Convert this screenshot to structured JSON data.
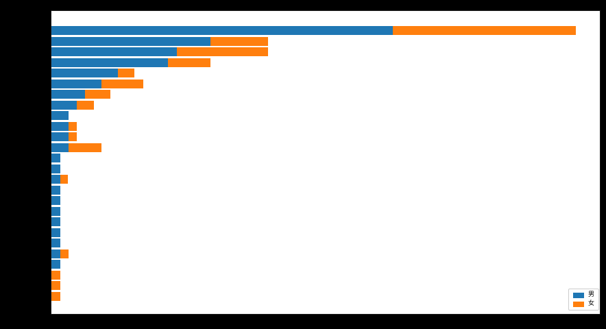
{
  "figure": {
    "background_color": "#000000",
    "plot_background_color": "#ffffff",
    "title": "",
    "title_legible": false,
    "y_tick_labels_legible": false,
    "x_tick_labels_legible": false
  },
  "legend": {
    "position": "lower right",
    "entries": [
      {
        "label": "男",
        "color": "#1f77b4"
      },
      {
        "label": "女",
        "color": "#ff7f0e"
      }
    ]
  },
  "chart_data": {
    "type": "bar",
    "orientation": "horizontal",
    "stacked": true,
    "title": "",
    "xlabel": "",
    "ylabel": "",
    "grid": false,
    "legend_position": "lower right",
    "xlim": [
      0,
      800
    ],
    "value_units": "plot-area pixels (axis tick labels are black-on-black and not legible)",
    "categories": [
      "",
      "",
      "",
      "",
      "",
      "",
      "",
      "",
      "",
      "",
      "",
      "",
      "",
      "",
      "",
      "",
      "",
      "",
      "",
      "",
      "",
      "",
      "",
      "",
      "",
      ""
    ],
    "series": [
      {
        "name": "男",
        "color": "#1f77b4",
        "values": [
          498,
          232,
          183,
          170,
          97,
          73,
          49,
          37,
          25,
          25,
          25,
          25,
          13,
          13,
          13,
          13,
          13,
          13,
          13,
          13,
          13,
          13,
          13,
          0,
          0,
          0
        ]
      },
      {
        "name": "女",
        "color": "#ff7f0e",
        "values": [
          267,
          84,
          133,
          62,
          24,
          61,
          37,
          25,
          0,
          12,
          12,
          48,
          0,
          0,
          11,
          0,
          0,
          0,
          0,
          0,
          0,
          12,
          0,
          13,
          13,
          13
        ]
      }
    ]
  }
}
